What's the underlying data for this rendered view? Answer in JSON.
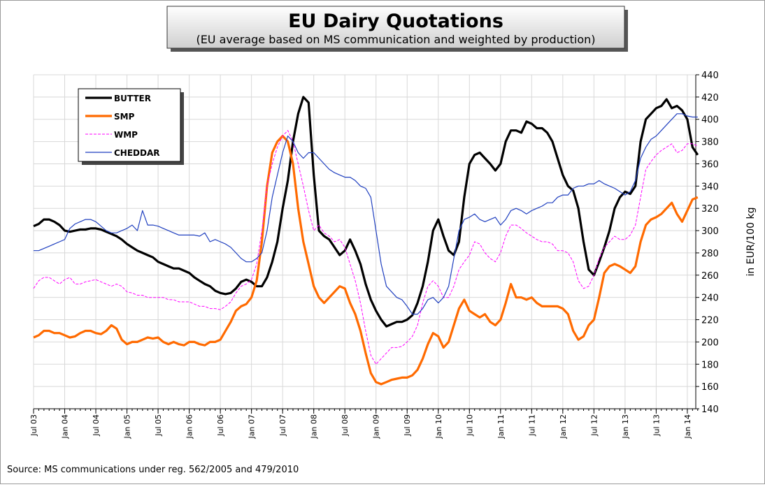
{
  "chart_data": {
    "type": "line",
    "title": "EU Dairy Quotations",
    "subtitle": "(EU average based on MS communication and weighted by production)",
    "y_label": "in EUR/100 kg",
    "source": "Source: MS communications under reg. 562/2005 and 479/2010",
    "legend": "upper left",
    "grid": true,
    "ylim": [
      140,
      440
    ],
    "yticks": [
      140,
      160,
      180,
      200,
      220,
      240,
      260,
      280,
      300,
      320,
      340,
      360,
      380,
      400,
      420,
      440
    ],
    "categories": [
      "Jul 03",
      null,
      null,
      null,
      null,
      null,
      "Jan 04",
      null,
      null,
      null,
      null,
      null,
      "Jul 04",
      null,
      null,
      null,
      null,
      null,
      "Jan 05",
      null,
      null,
      null,
      null,
      null,
      "Jul 05",
      null,
      null,
      null,
      null,
      null,
      "Jan 06",
      null,
      null,
      null,
      null,
      null,
      "Jul 06",
      null,
      null,
      null,
      null,
      null,
      "Jan 07",
      null,
      null,
      null,
      null,
      null,
      "Jul 07",
      null,
      null,
      null,
      null,
      null,
      "Jan 08",
      null,
      null,
      null,
      null,
      null,
      "Jul 08",
      null,
      null,
      null,
      null,
      null,
      "Jan 09",
      null,
      null,
      null,
      null,
      null,
      "Jul 09",
      null,
      null,
      null,
      null,
      null,
      "Jan 10",
      null,
      null,
      null,
      null,
      null,
      "Jul 10",
      null,
      null,
      null,
      null,
      null,
      "Jan 11",
      null,
      null,
      null,
      null,
      null,
      "Jul 11",
      null,
      null,
      null,
      null,
      null,
      "Jan 12",
      null,
      null,
      null,
      null,
      null,
      "Jul 12",
      null,
      null,
      null,
      null,
      null,
      "Jan 13",
      null,
      null,
      null,
      null,
      null,
      "Jul 13",
      null,
      null,
      null,
      null,
      null,
      "Jan 14",
      null,
      null
    ],
    "series": [
      {
        "name": "BUTTER",
        "color": "#000000",
        "style": "thick",
        "values": [
          304,
          306,
          310,
          310,
          308,
          305,
          300,
          299,
          300,
          301,
          301,
          302,
          302,
          301,
          299,
          297,
          295,
          292,
          288,
          285,
          282,
          280,
          278,
          276,
          272,
          270,
          268,
          266,
          266,
          264,
          262,
          258,
          255,
          252,
          250,
          246,
          244,
          243,
          244,
          248,
          254,
          256,
          254,
          250,
          250,
          258,
          272,
          290,
          320,
          345,
          380,
          405,
          420,
          415,
          350,
          300,
          295,
          292,
          285,
          278,
          282,
          292,
          282,
          270,
          252,
          238,
          228,
          220,
          214,
          216,
          218,
          218,
          220,
          224,
          235,
          250,
          272,
          300,
          310,
          295,
          282,
          278,
          290,
          330,
          360,
          368,
          370,
          365,
          360,
          354,
          360,
          380,
          390,
          390,
          388,
          398,
          396,
          392,
          392,
          388,
          380,
          365,
          350,
          340,
          336,
          320,
          290,
          265,
          260,
          272,
          285,
          300,
          320,
          330,
          335,
          333,
          340,
          380,
          400,
          405,
          410,
          412,
          418,
          410,
          412,
          408,
          400,
          375,
          368
        ]
      },
      {
        "name": "SMP",
        "color": "#ff6a00",
        "style": "thick",
        "values": [
          204,
          206,
          210,
          210,
          208,
          208,
          206,
          204,
          205,
          208,
          210,
          210,
          208,
          207,
          210,
          215,
          212,
          202,
          198,
          200,
          200,
          202,
          204,
          203,
          204,
          200,
          198,
          200,
          198,
          197,
          200,
          200,
          198,
          197,
          200,
          200,
          202,
          210,
          218,
          228,
          232,
          234,
          240,
          255,
          290,
          340,
          370,
          380,
          385,
          380,
          360,
          320,
          290,
          270,
          250,
          240,
          235,
          240,
          245,
          250,
          248,
          235,
          225,
          210,
          190,
          172,
          164,
          162,
          164,
          166,
          167,
          168,
          168,
          170,
          175,
          185,
          198,
          208,
          205,
          195,
          200,
          215,
          230,
          238,
          228,
          225,
          222,
          225,
          218,
          215,
          220,
          235,
          252,
          240,
          240,
          238,
          240,
          235,
          232,
          232,
          232,
          232,
          230,
          225,
          210,
          202,
          205,
          215,
          220,
          240,
          262,
          268,
          270,
          268,
          265,
          262,
          268,
          290,
          305,
          310,
          312,
          315,
          320,
          325,
          315,
          308,
          318,
          328,
          330
        ]
      },
      {
        "name": "WMP",
        "color": "#ff00ff",
        "style": "dashed",
        "values": [
          248,
          255,
          258,
          258,
          255,
          252,
          256,
          258,
          252,
          252,
          254,
          255,
          256,
          254,
          252,
          250,
          252,
          250,
          245,
          244,
          242,
          242,
          240,
          240,
          240,
          240,
          238,
          238,
          236,
          236,
          236,
          234,
          232,
          232,
          230,
          230,
          229,
          232,
          236,
          244,
          250,
          252,
          256,
          270,
          300,
          340,
          360,
          375,
          385,
          390,
          380,
          360,
          340,
          318,
          300,
          305,
          298,
          295,
          290,
          292,
          285,
          270,
          255,
          235,
          210,
          188,
          180,
          185,
          190,
          195,
          195,
          196,
          200,
          205,
          215,
          235,
          250,
          255,
          250,
          240,
          240,
          250,
          265,
          272,
          278,
          290,
          288,
          280,
          275,
          272,
          280,
          295,
          305,
          305,
          302,
          298,
          295,
          292,
          290,
          290,
          288,
          282,
          282,
          280,
          272,
          255,
          248,
          250,
          260,
          275,
          285,
          290,
          295,
          292,
          292,
          296,
          305,
          330,
          355,
          362,
          368,
          372,
          375,
          378,
          370,
          372,
          378,
          378,
          376
        ]
      },
      {
        "name": "CHEDDAR",
        "color": "#1f3fbf",
        "style": "thin",
        "values": [
          282,
          282,
          284,
          286,
          288,
          290,
          292,
          302,
          306,
          308,
          310,
          310,
          308,
          304,
          300,
          298,
          298,
          300,
          302,
          305,
          300,
          318,
          305,
          305,
          304,
          302,
          300,
          298,
          296,
          296,
          296,
          296,
          295,
          298,
          290,
          292,
          290,
          288,
          285,
          280,
          275,
          272,
          272,
          275,
          280,
          300,
          330,
          350,
          370,
          385,
          380,
          370,
          365,
          370,
          370,
          365,
          360,
          355,
          352,
          350,
          348,
          348,
          345,
          340,
          338,
          330,
          300,
          270,
          250,
          245,
          240,
          238,
          232,
          225,
          225,
          230,
          238,
          240,
          235,
          240,
          250,
          275,
          300,
          310,
          312,
          315,
          310,
          308,
          310,
          312,
          305,
          310,
          318,
          320,
          318,
          315,
          318,
          320,
          322,
          325,
          325,
          330,
          332,
          332,
          338,
          340,
          340,
          342,
          342,
          345,
          342,
          340,
          338,
          335,
          332,
          335,
          345,
          365,
          375,
          382,
          385,
          390,
          395,
          400,
          405,
          405,
          403,
          402,
          402
        ]
      }
    ]
  }
}
